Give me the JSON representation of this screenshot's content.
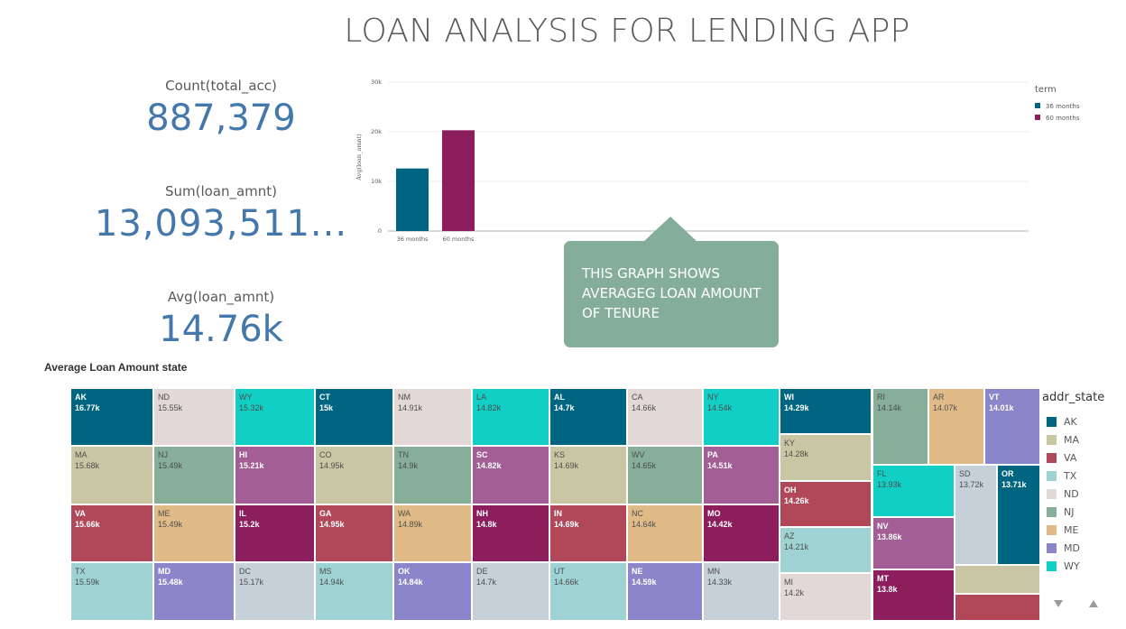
{
  "title": "LOAN ANALYSIS FOR LENDING APP",
  "kpis": {
    "count": {
      "label": "Count(total_acc)",
      "value": "887,379"
    },
    "sum": {
      "label": "Sum(loan_amnt)",
      "value": "13,093,511..."
    },
    "avg": {
      "label": "Avg(loan_amnt)",
      "value": "14.76k"
    }
  },
  "callout": {
    "text": "THIS GRAPH SHOWS\nAVERAGEG LOAN AMOUNT\nOF TENURE"
  },
  "treemap_title": "Average Loan Amount state",
  "treemap_legend_title": "addr_state",
  "treemap_legend": [
    {
      "label": "AK",
      "color": "#006580"
    },
    {
      "label": "MA",
      "color": "#c9c6a4"
    },
    {
      "label": "VA",
      "color": "#b0485a"
    },
    {
      "label": "TX",
      "color": "#9fd3d3"
    },
    {
      "label": "ND",
      "color": "#e2d9d6"
    },
    {
      "label": "NJ",
      "color": "#86ae99"
    },
    {
      "label": "ME",
      "color": "#e0bb88"
    },
    {
      "label": "MD",
      "color": "#8a86c9"
    },
    {
      "label": "WY",
      "color": "#12cfc6"
    }
  ],
  "colors": {
    "teal": "#006580",
    "khaki": "#c9c6a4",
    "red": "#b0485a",
    "lightteal": "#9fd3d3",
    "pinkgray": "#e2d9d6",
    "sage": "#86ae99",
    "tan": "#e0bb88",
    "lavender": "#8a86c9",
    "cyan": "#12cfc6",
    "purple": "#a35e95",
    "plum": "#8c1e5e",
    "bluegray": "#c6d0d9",
    "callout": "#84ae9a",
    "kpi": "#4477aa"
  },
  "chart_data": [
    {
      "type": "bar",
      "categories": [
        "36 months",
        "60 months"
      ],
      "values": [
        12600,
        20300
      ],
      "ylabel": "Avg(loan_amnt)",
      "ylim": [
        0,
        30000
      ],
      "yticks": [
        "0",
        "10k",
        "20k",
        "30k"
      ],
      "legend_title": "term",
      "legend": [
        {
          "label": "36 months",
          "color": "#006580"
        },
        {
          "label": "60 months",
          "color": "#8c1e5e"
        }
      ],
      "legend_position": "top-right",
      "grid": true
    },
    {
      "type": "treemap",
      "cells": [
        {
          "label": "AK",
          "value": "16.77k",
          "color": "teal",
          "style": "dark"
        },
        {
          "label": "MA",
          "value": "15.68k",
          "color": "khaki",
          "style": "light"
        },
        {
          "label": "VA",
          "value": "15.66k",
          "color": "red",
          "style": "dark"
        },
        {
          "label": "TX",
          "value": "15.59k",
          "color": "lightteal",
          "style": "light"
        },
        {
          "label": "ND",
          "value": "15.55k",
          "color": "pinkgray",
          "style": "light"
        },
        {
          "label": "NJ",
          "value": "15.49k",
          "color": "sage",
          "style": "light"
        },
        {
          "label": "ME",
          "value": "15.49k",
          "color": "tan",
          "style": "light"
        },
        {
          "label": "MD",
          "value": "15.48k",
          "color": "lavender",
          "style": "dark"
        },
        {
          "label": "WY",
          "value": "15.32k",
          "color": "cyan",
          "style": "light"
        },
        {
          "label": "HI",
          "value": "15.21k",
          "color": "purple",
          "style": "dark"
        },
        {
          "label": "IL",
          "value": "15.2k",
          "color": "plum",
          "style": "dark"
        },
        {
          "label": "DC",
          "value": "15.17k",
          "color": "bluegray",
          "style": "light"
        },
        {
          "label": "CT",
          "value": "15k",
          "color": "teal",
          "style": "dark"
        },
        {
          "label": "CO",
          "value": "14.95k",
          "color": "khaki",
          "style": "light"
        },
        {
          "label": "GA",
          "value": "14.95k",
          "color": "red",
          "style": "dark"
        },
        {
          "label": "MS",
          "value": "14.94k",
          "color": "lightteal",
          "style": "light"
        },
        {
          "label": "NM",
          "value": "14.91k",
          "color": "pinkgray",
          "style": "light"
        },
        {
          "label": "TN",
          "value": "14.9k",
          "color": "sage",
          "style": "light"
        },
        {
          "label": "WA",
          "value": "14.89k",
          "color": "tan",
          "style": "light"
        },
        {
          "label": "OK",
          "value": "14.84k",
          "color": "lavender",
          "style": "dark"
        },
        {
          "label": "LA",
          "value": "14.82k",
          "color": "cyan",
          "style": "light"
        },
        {
          "label": "SC",
          "value": "14.82k",
          "color": "purple",
          "style": "dark"
        },
        {
          "label": "NH",
          "value": "14.8k",
          "color": "plum",
          "style": "dark"
        },
        {
          "label": "DE",
          "value": "14.7k",
          "color": "bluegray",
          "style": "light"
        },
        {
          "label": "AL",
          "value": "14.7k",
          "color": "teal",
          "style": "dark"
        },
        {
          "label": "KS",
          "value": "14.69k",
          "color": "khaki",
          "style": "light"
        },
        {
          "label": "IN",
          "value": "14.69k",
          "color": "red",
          "style": "dark"
        },
        {
          "label": "UT",
          "value": "14.66k",
          "color": "lightteal",
          "style": "light"
        },
        {
          "label": "CA",
          "value": "14.66k",
          "color": "pinkgray",
          "style": "light"
        },
        {
          "label": "WV",
          "value": "14.65k",
          "color": "sage",
          "style": "light"
        },
        {
          "label": "NC",
          "value": "14.64k",
          "color": "tan",
          "style": "light"
        },
        {
          "label": "NE",
          "value": "14.59k",
          "color": "lavender",
          "style": "dark"
        },
        {
          "label": "NY",
          "value": "14.54k",
          "color": "cyan",
          "style": "light"
        },
        {
          "label": "PA",
          "value": "14.51k",
          "color": "purple",
          "style": "dark"
        },
        {
          "label": "MO",
          "value": "14.42k",
          "color": "plum",
          "style": "dark"
        },
        {
          "label": "MN",
          "value": "14.33k",
          "color": "bluegray",
          "style": "light"
        },
        {
          "label": "WI",
          "value": "14.29k",
          "color": "teal",
          "style": "dark"
        },
        {
          "label": "KY",
          "value": "14.28k",
          "color": "khaki",
          "style": "light"
        },
        {
          "label": "OH",
          "value": "14.26k",
          "color": "red",
          "style": "dark"
        },
        {
          "label": "AZ",
          "value": "14.21k",
          "color": "lightteal",
          "style": "light"
        },
        {
          "label": "MI",
          "value": "14.2k",
          "color": "pinkgray",
          "style": "light"
        },
        {
          "label": "RI",
          "value": "14.14k",
          "color": "sage",
          "style": "light"
        },
        {
          "label": "AR",
          "value": "14.07k",
          "color": "tan",
          "style": "light"
        },
        {
          "label": "VT",
          "value": "14.01k",
          "color": "lavender",
          "style": "dark"
        },
        {
          "label": "FL",
          "value": "13.93k",
          "color": "cyan",
          "style": "light"
        },
        {
          "label": "NV",
          "value": "13.86k",
          "color": "purple",
          "style": "dark"
        },
        {
          "label": "MT",
          "value": "13.8k",
          "color": "plum",
          "style": "dark"
        },
        {
          "label": "SD",
          "value": "13.72k",
          "color": "bluegray",
          "style": "light"
        },
        {
          "label": "OR",
          "value": "13.71k",
          "color": "teal",
          "style": "dark"
        },
        {
          "label": "",
          "value": "",
          "color": "khaki",
          "style": "light"
        },
        {
          "label": "",
          "value": "",
          "color": "red",
          "style": "light"
        }
      ]
    }
  ]
}
